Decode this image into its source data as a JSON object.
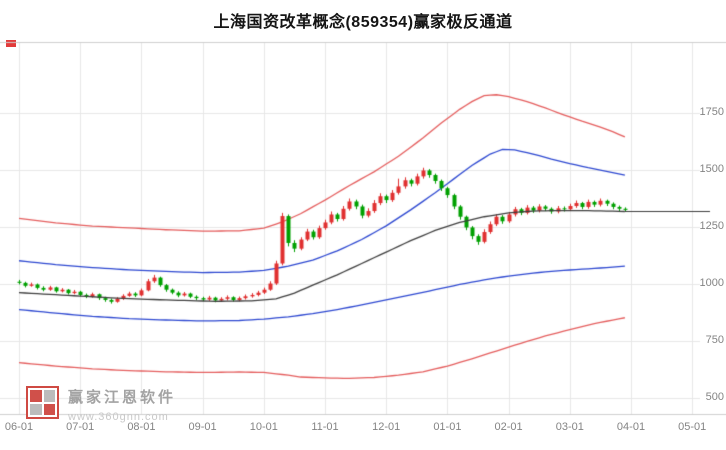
{
  "header": {
    "title": "上海国资改革概念(859354)赢家极反通道"
  },
  "watermark": {
    "brand": "赢家江恩软件",
    "url": "www.360gnn.com"
  },
  "colors": {
    "logo_red": "#d0504a",
    "logo_gray": "#bcbcbc",
    "marker_red": "#e23b3b",
    "title_text": "#151515",
    "axis_text": "#848484"
  },
  "chart_data": {
    "type": "candlestick",
    "title": "上海国资改革概念(859354)赢家极反通道",
    "x_labels": [
      "06-01",
      "07-01",
      "08-01",
      "09-01",
      "10-01",
      "11-01",
      "12-01",
      "01-01",
      "02-01",
      "03-01",
      "04-01",
      "05-01"
    ],
    "y_ticks": [
      1750,
      1500,
      1250,
      1000,
      750,
      500
    ],
    "ylim": [
      430,
      2050
    ],
    "grid": true,
    "legend_position": "none",
    "candles_per_month": 10,
    "candle_up_color": "#e03030",
    "candle_down_color": "#00a000",
    "grid_color": "#e7e7e7",
    "frame_color": "#cfcfcf",
    "candle_format": [
      "open",
      "high",
      "low",
      "close"
    ],
    "candles": [
      [
        1010,
        1018,
        998,
        1005
      ],
      [
        1005,
        1010,
        985,
        992
      ],
      [
        992,
        1006,
        988,
        998
      ],
      [
        998,
        1002,
        976,
        983
      ],
      [
        983,
        990,
        968,
        975
      ],
      [
        975,
        992,
        970,
        985
      ],
      [
        985,
        988,
        962,
        968
      ],
      [
        968,
        982,
        963,
        975
      ],
      [
        975,
        978,
        954,
        960
      ],
      [
        960,
        974,
        955,
        966
      ],
      [
        966,
        970,
        946,
        952
      ],
      [
        952,
        958,
        938,
        945
      ],
      [
        945,
        962,
        940,
        955
      ],
      [
        955,
        958,
        930,
        938
      ],
      [
        938,
        944,
        922,
        930
      ],
      [
        930,
        936,
        914,
        922
      ],
      [
        922,
        942,
        918,
        935
      ],
      [
        935,
        955,
        930,
        948
      ],
      [
        948,
        966,
        944,
        958
      ],
      [
        958,
        964,
        943,
        950
      ],
      [
        950,
        980,
        946,
        972
      ],
      [
        972,
        1022,
        968,
        1012
      ],
      [
        1012,
        1040,
        1005,
        1028
      ],
      [
        1028,
        1032,
        988,
        995
      ],
      [
        995,
        1000,
        966,
        975
      ],
      [
        975,
        980,
        955,
        962
      ],
      [
        962,
        968,
        942,
        950
      ],
      [
        950,
        965,
        945,
        958
      ],
      [
        958,
        962,
        938,
        944
      ],
      [
        944,
        950,
        930,
        938
      ],
      [
        938,
        944,
        925,
        932
      ],
      [
        932,
        948,
        926,
        940
      ],
      [
        940,
        944,
        920,
        928
      ],
      [
        928,
        942,
        922,
        935
      ],
      [
        935,
        950,
        928,
        942
      ],
      [
        942,
        946,
        923,
        930
      ],
      [
        930,
        945,
        924,
        938
      ],
      [
        938,
        954,
        932,
        946
      ],
      [
        946,
        960,
        940,
        952
      ],
      [
        952,
        970,
        946,
        962
      ],
      [
        962,
        984,
        956,
        975
      ],
      [
        975,
        1012,
        970,
        1002
      ],
      [
        1002,
        1102,
        996,
        1090
      ],
      [
        1090,
        1312,
        1082,
        1298
      ],
      [
        1298,
        1305,
        1165,
        1180
      ],
      [
        1180,
        1192,
        1140,
        1155
      ],
      [
        1155,
        1205,
        1148,
        1195
      ],
      [
        1195,
        1242,
        1188,
        1230
      ],
      [
        1230,
        1238,
        1195,
        1205
      ],
      [
        1205,
        1256,
        1198,
        1245
      ],
      [
        1245,
        1282,
        1238,
        1270
      ],
      [
        1270,
        1318,
        1262,
        1305
      ],
      [
        1305,
        1312,
        1274,
        1285
      ],
      [
        1285,
        1342,
        1278,
        1330
      ],
      [
        1330,
        1375,
        1322,
        1362
      ],
      [
        1362,
        1370,
        1328,
        1340
      ],
      [
        1340,
        1348,
        1288,
        1300
      ],
      [
        1300,
        1332,
        1292,
        1320
      ],
      [
        1320,
        1368,
        1312,
        1355
      ],
      [
        1355,
        1398,
        1346,
        1385
      ],
      [
        1385,
        1392,
        1355,
        1368
      ],
      [
        1368,
        1412,
        1360,
        1400
      ],
      [
        1400,
        1462,
        1392,
        1428
      ],
      [
        1428,
        1468,
        1418,
        1455
      ],
      [
        1455,
        1462,
        1428,
        1440
      ],
      [
        1440,
        1484,
        1432,
        1472
      ],
      [
        1472,
        1510,
        1462,
        1498
      ],
      [
        1498,
        1504,
        1466,
        1478
      ],
      [
        1478,
        1484,
        1440,
        1452
      ],
      [
        1452,
        1458,
        1408,
        1420
      ],
      [
        1420,
        1426,
        1378,
        1390
      ],
      [
        1390,
        1396,
        1328,
        1340
      ],
      [
        1340,
        1346,
        1282,
        1295
      ],
      [
        1295,
        1300,
        1236,
        1248
      ],
      [
        1248,
        1254,
        1196,
        1210
      ],
      [
        1210,
        1218,
        1172,
        1185
      ],
      [
        1185,
        1240,
        1178,
        1228
      ],
      [
        1228,
        1274,
        1220,
        1262
      ],
      [
        1262,
        1306,
        1254,
        1295
      ],
      [
        1295,
        1302,
        1264,
        1275
      ],
      [
        1275,
        1316,
        1268,
        1305
      ],
      [
        1305,
        1338,
        1296,
        1328
      ],
      [
        1328,
        1334,
        1302,
        1312
      ],
      [
        1312,
        1346,
        1305,
        1335
      ],
      [
        1335,
        1342,
        1312,
        1322
      ],
      [
        1322,
        1350,
        1314,
        1340
      ],
      [
        1340,
        1346,
        1320,
        1330
      ],
      [
        1330,
        1336,
        1308,
        1318
      ],
      [
        1318,
        1342,
        1310,
        1332
      ],
      [
        1332,
        1340,
        1318,
        1328
      ],
      [
        1328,
        1352,
        1320,
        1342
      ],
      [
        1342,
        1366,
        1334,
        1355
      ],
      [
        1355,
        1360,
        1328,
        1338
      ],
      [
        1338,
        1370,
        1330,
        1360
      ],
      [
        1360,
        1366,
        1338,
        1348
      ],
      [
        1348,
        1375,
        1340,
        1365
      ],
      [
        1365,
        1370,
        1342,
        1352
      ],
      [
        1352,
        1358,
        1328,
        1338
      ],
      [
        1338,
        1344,
        1320,
        1330
      ],
      [
        1330,
        1336,
        1316,
        1325
      ]
    ],
    "lines": {
      "upper_red": {
        "color": "#e45c5c",
        "points": [
          [
            0,
            1288
          ],
          [
            6,
            1268
          ],
          [
            12,
            1254
          ],
          [
            18,
            1246
          ],
          [
            24,
            1238
          ],
          [
            30,
            1232
          ],
          [
            36,
            1233
          ],
          [
            40,
            1245
          ],
          [
            43,
            1272
          ],
          [
            46,
            1308
          ],
          [
            50,
            1368
          ],
          [
            54,
            1432
          ],
          [
            58,
            1492
          ],
          [
            62,
            1560
          ],
          [
            66,
            1640
          ],
          [
            69,
            1706
          ],
          [
            72,
            1766
          ],
          [
            74,
            1800
          ],
          [
            76,
            1826
          ],
          [
            78,
            1830
          ],
          [
            80,
            1822
          ],
          [
            83,
            1800
          ],
          [
            86,
            1772
          ],
          [
            89,
            1742
          ],
          [
            92,
            1714
          ],
          [
            95,
            1688
          ],
          [
            97,
            1668
          ],
          [
            99,
            1645
          ]
        ]
      },
      "upper_blue": {
        "color": "#2b46d0",
        "points": [
          [
            0,
            1102
          ],
          [
            6,
            1085
          ],
          [
            12,
            1072
          ],
          [
            18,
            1062
          ],
          [
            24,
            1055
          ],
          [
            30,
            1050
          ],
          [
            36,
            1052
          ],
          [
            40,
            1060
          ],
          [
            44,
            1078
          ],
          [
            48,
            1105
          ],
          [
            52,
            1145
          ],
          [
            56,
            1195
          ],
          [
            60,
            1255
          ],
          [
            64,
            1325
          ],
          [
            68,
            1400
          ],
          [
            71,
            1460
          ],
          [
            74,
            1520
          ],
          [
            77,
            1570
          ],
          [
            79,
            1590
          ],
          [
            81,
            1588
          ],
          [
            84,
            1570
          ],
          [
            87,
            1548
          ],
          [
            90,
            1528
          ],
          [
            93,
            1510
          ],
          [
            96,
            1494
          ],
          [
            99,
            1478
          ]
        ]
      },
      "middle_black": {
        "color": "#3d3d3d",
        "points": [
          [
            0,
            962
          ],
          [
            8,
            950
          ],
          [
            16,
            938
          ],
          [
            24,
            930
          ],
          [
            32,
            924
          ],
          [
            38,
            926
          ],
          [
            42,
            935
          ],
          [
            45,
            960
          ],
          [
            48,
            995
          ],
          [
            52,
            1040
          ],
          [
            56,
            1090
          ],
          [
            60,
            1140
          ],
          [
            64,
            1190
          ],
          [
            68,
            1235
          ],
          [
            72,
            1270
          ],
          [
            76,
            1295
          ],
          [
            80,
            1312
          ],
          [
            84,
            1320
          ],
          [
            88,
            1322
          ],
          [
            92,
            1322
          ],
          [
            96,
            1320
          ],
          [
            99,
            1318
          ]
        ]
      },
      "lower_blue": {
        "color": "#2b46d0",
        "points": [
          [
            0,
            888
          ],
          [
            6,
            872
          ],
          [
            12,
            858
          ],
          [
            18,
            848
          ],
          [
            24,
            842
          ],
          [
            30,
            838
          ],
          [
            36,
            840
          ],
          [
            40,
            846
          ],
          [
            44,
            856
          ],
          [
            48,
            870
          ],
          [
            52,
            888
          ],
          [
            56,
            908
          ],
          [
            60,
            930
          ],
          [
            64,
            952
          ],
          [
            68,
            975
          ],
          [
            72,
            998
          ],
          [
            76,
            1018
          ],
          [
            80,
            1035
          ],
          [
            84,
            1048
          ],
          [
            88,
            1058
          ],
          [
            92,
            1065
          ],
          [
            96,
            1072
          ],
          [
            99,
            1078
          ]
        ]
      },
      "lower_red": {
        "color": "#e45c5c",
        "points": [
          [
            0,
            655
          ],
          [
            6,
            640
          ],
          [
            12,
            628
          ],
          [
            18,
            620
          ],
          [
            24,
            615
          ],
          [
            30,
            612
          ],
          [
            36,
            614
          ],
          [
            40,
            612
          ],
          [
            44,
            600
          ],
          [
            46,
            592
          ],
          [
            50,
            588
          ],
          [
            54,
            586
          ],
          [
            58,
            590
          ],
          [
            62,
            600
          ],
          [
            66,
            615
          ],
          [
            70,
            640
          ],
          [
            74,
            672
          ],
          [
            78,
            706
          ],
          [
            82,
            740
          ],
          [
            86,
            772
          ],
          [
            90,
            800
          ],
          [
            94,
            826
          ],
          [
            97,
            842
          ],
          [
            99,
            852
          ]
        ]
      }
    },
    "extension_line": {
      "value": 1318,
      "color": "#3d3d3d"
    }
  }
}
